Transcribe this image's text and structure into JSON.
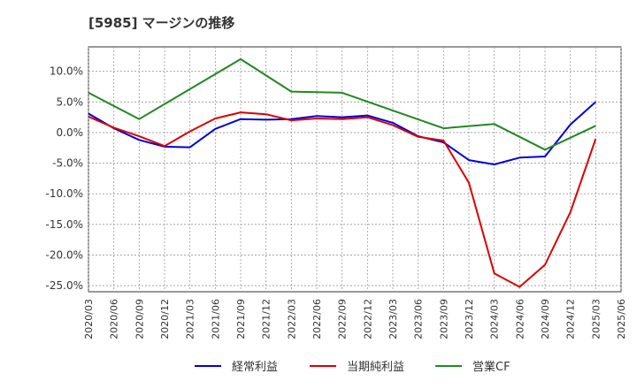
{
  "chart_data": {
    "type": "line",
    "title": "[5985]  マージンの推移",
    "xlabel": "",
    "ylabel": "",
    "ylim": [
      -26,
      14
    ],
    "yticks": [
      10,
      5,
      0,
      -5,
      -10,
      -15,
      -20,
      -25
    ],
    "ytick_labels": [
      "10.0%",
      "5.0%",
      "0.0%",
      "-5.0%",
      "-10.0%",
      "-15.0%",
      "-20.0%",
      "-25.0%"
    ],
    "grid": true,
    "legend_position": "bottom",
    "categories": [
      "2020/03",
      "2020/06",
      "2020/09",
      "2020/12",
      "2021/03",
      "2021/06",
      "2021/09",
      "2021/12",
      "2022/03",
      "2022/06",
      "2022/09",
      "2022/12",
      "2023/03",
      "2023/06",
      "2023/09",
      "2023/12",
      "2024/03",
      "2024/06",
      "2024/09",
      "2024/12",
      "2025/03",
      "2025/06"
    ],
    "series": [
      {
        "name": "経常利益",
        "color": "#0000dd",
        "values": [
          3.1,
          0.7,
          -1.2,
          -2.3,
          -2.4,
          0.6,
          2.2,
          2.1,
          2.2,
          2.7,
          2.5,
          2.8,
          1.6,
          -0.6,
          -1.6,
          -4.5,
          -5.2,
          -4.1,
          -3.9,
          1.3,
          5.0,
          null
        ]
      },
      {
        "name": "当期純利益",
        "color": "#dd0000",
        "values": [
          2.6,
          0.8,
          -0.6,
          -2.2,
          0.2,
          2.3,
          3.3,
          3.0,
          2.0,
          2.3,
          2.2,
          2.5,
          1.2,
          -0.7,
          -1.3,
          -8.2,
          -23.0,
          -25.2,
          -21.6,
          -13.0,
          -1.0,
          null
        ]
      },
      {
        "name": "営業CF",
        "color": "#228822",
        "values": [
          6.5,
          null,
          2.2,
          null,
          null,
          null,
          12.0,
          null,
          6.7,
          null,
          6.5,
          null,
          null,
          null,
          0.7,
          null,
          1.4,
          null,
          -2.8,
          null,
          1.1,
          null
        ]
      }
    ]
  }
}
